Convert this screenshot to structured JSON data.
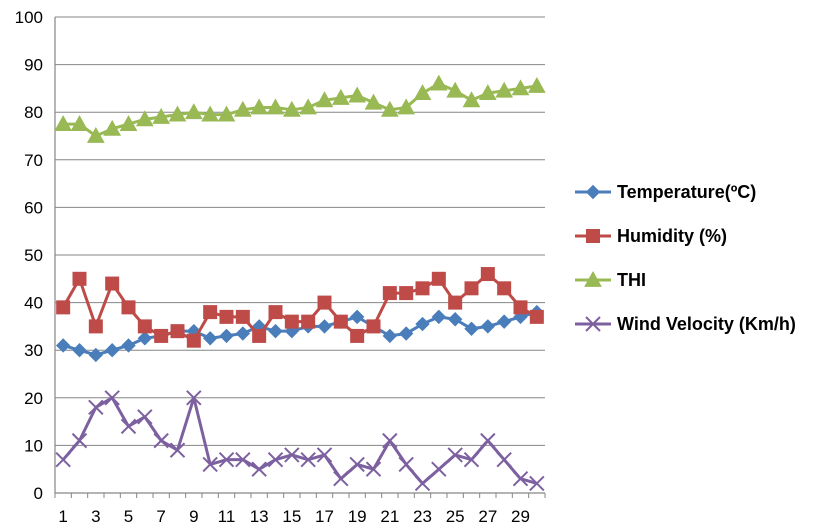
{
  "chart_data": {
    "type": "line",
    "x": [
      1,
      2,
      3,
      4,
      5,
      6,
      7,
      8,
      9,
      10,
      11,
      12,
      13,
      14,
      15,
      16,
      17,
      18,
      19,
      20,
      21,
      22,
      23,
      24,
      25,
      26,
      27,
      28,
      29,
      30
    ],
    "x_tick_labels": [
      "1",
      "3",
      "5",
      "7",
      "9",
      "11",
      "13",
      "15",
      "17",
      "19",
      "21",
      "23",
      "25",
      "27",
      "29"
    ],
    "ylim": [
      0,
      100
    ],
    "y_tick_labels": [
      "0",
      "10",
      "20",
      "30",
      "40",
      "50",
      "60",
      "70",
      "80",
      "90",
      "100"
    ],
    "grid": true,
    "legend_position": "right",
    "series": [
      {
        "name": "Temperature(ºC)",
        "color": "#4a7ebb",
        "marker": "diamond",
        "values": [
          31,
          30,
          29,
          30,
          31,
          32.5,
          33,
          34,
          34,
          32.5,
          33,
          33.5,
          35,
          34,
          34,
          35,
          35,
          36,
          37,
          35,
          33,
          33.5,
          35.5,
          37,
          36.5,
          34.5,
          35,
          36,
          37,
          38
        ]
      },
      {
        "name": "Humidity (%)",
        "color": "#be4b48",
        "marker": "square",
        "values": [
          39,
          45,
          35,
          44,
          39,
          35,
          33,
          34,
          32,
          38,
          37,
          37,
          33,
          38,
          36,
          36,
          40,
          36,
          33,
          35,
          42,
          42,
          43,
          45,
          40,
          43,
          46,
          43,
          39,
          37
        ]
      },
      {
        "name": "THI",
        "color": "#98b954",
        "marker": "triangle",
        "values": [
          77.5,
          77.5,
          75,
          76.5,
          77.5,
          78.5,
          79,
          79.5,
          80,
          79.5,
          79.5,
          80.5,
          81,
          81,
          80.5,
          81,
          82.5,
          83,
          83.5,
          82,
          80.5,
          81,
          84,
          86,
          84.5,
          82.5,
          84,
          84.5,
          85,
          85.5
        ]
      },
      {
        "name": "Wind Velocity (Km/h)",
        "color": "#7d60a0",
        "marker": "x",
        "values": [
          7,
          11,
          18,
          20,
          14,
          16,
          11,
          9,
          20,
          6,
          7,
          7,
          5,
          7,
          8,
          7,
          8,
          3,
          6,
          5,
          11,
          6,
          2,
          5,
          8,
          7,
          11,
          7,
          3,
          2
        ]
      }
    ]
  }
}
